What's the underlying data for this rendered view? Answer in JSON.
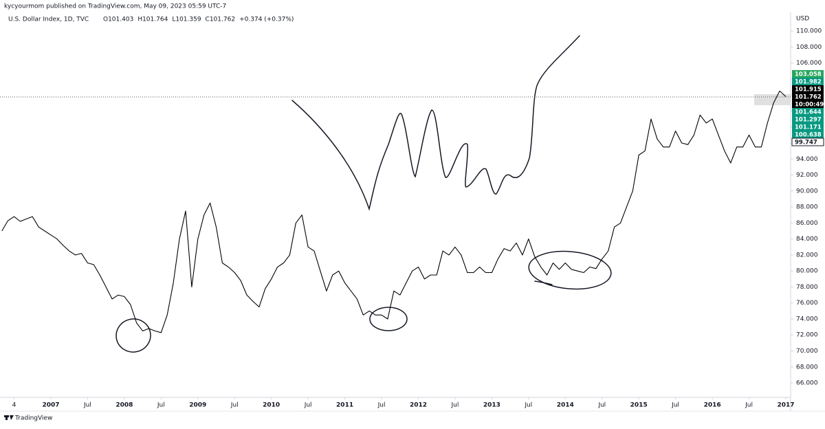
{
  "chart_data": {
    "type": "line",
    "header": "kycyourmom published on TradingView.com, May 09, 2023 05:59 UTC-7",
    "title": "U.S. Dollar Index, 1D, TVC",
    "ohlc": [
      "O101.403",
      "H101.764",
      "L101.359",
      "C101.762",
      "+0.374 (+0.37%)"
    ],
    "currency": "USD",
    "footer": "TradingView",
    "color": "#000000",
    "x": [
      "2006-05",
      "2006-06",
      "2006-07",
      "2006-08",
      "2006-09",
      "2006-10",
      "2006-11",
      "2006-12",
      "2007-01",
      "2007-02",
      "2007-03",
      "2007-04",
      "2007-05",
      "2007-06",
      "2007-07",
      "2007-08",
      "2007-09",
      "2007-10",
      "2007-11",
      "2007-12",
      "2008-01",
      "2008-02",
      "2008-03",
      "2008-04",
      "2008-05",
      "2008-06",
      "2008-07",
      "2008-08",
      "2008-09",
      "2008-10",
      "2008-11",
      "2008-12",
      "2009-01",
      "2009-02",
      "2009-03",
      "2009-04",
      "2009-05",
      "2009-06",
      "2009-07",
      "2009-08",
      "2009-09",
      "2009-10",
      "2009-11",
      "2009-12",
      "2010-01",
      "2010-02",
      "2010-03",
      "2010-04",
      "2010-05",
      "2010-06",
      "2010-07",
      "2010-08",
      "2010-09",
      "2010-10",
      "2010-11",
      "2010-12",
      "2011-01",
      "2011-02",
      "2011-03",
      "2011-04",
      "2011-05",
      "2011-06",
      "2011-07",
      "2011-08",
      "2011-09",
      "2011-10",
      "2011-11",
      "2011-12",
      "2012-01",
      "2012-02",
      "2012-03",
      "2012-04",
      "2012-05",
      "2012-06",
      "2012-07",
      "2012-08",
      "2012-09",
      "2012-10",
      "2012-11",
      "2012-12",
      "2013-01",
      "2013-02",
      "2013-03",
      "2013-04",
      "2013-05",
      "2013-06",
      "2013-07",
      "2013-08",
      "2013-09",
      "2013-10",
      "2013-11",
      "2013-12",
      "2014-01",
      "2014-02",
      "2014-03",
      "2014-04",
      "2014-05",
      "2014-06",
      "2014-07",
      "2014-08",
      "2014-09",
      "2014-10",
      "2014-11",
      "2014-12",
      "2015-01",
      "2015-02",
      "2015-03",
      "2015-04",
      "2015-05",
      "2015-06",
      "2015-07",
      "2015-08",
      "2015-09",
      "2015-10",
      "2015-11",
      "2015-12",
      "2016-01",
      "2016-02",
      "2016-03",
      "2016-04",
      "2016-05",
      "2016-06",
      "2016-07",
      "2016-08",
      "2016-09",
      "2016-10",
      "2016-11",
      "2016-12",
      "2017-01"
    ],
    "values": [
      85.0,
      86.3,
      86.8,
      86.2,
      86.5,
      86.8,
      85.5,
      85.0,
      84.5,
      84.0,
      83.2,
      82.5,
      82.0,
      82.2,
      81.0,
      80.8,
      79.5,
      78.0,
      76.5,
      77.0,
      76.8,
      75.8,
      73.5,
      72.5,
      72.8,
      72.5,
      72.3,
      74.5,
      78.5,
      84.0,
      87.5,
      78.0,
      84.0,
      87.0,
      88.5,
      85.5,
      81.0,
      80.5,
      79.8,
      78.8,
      77.0,
      76.2,
      75.5,
      77.8,
      79.0,
      80.5,
      81.0,
      82.0,
      86.0,
      87.0,
      83.0,
      82.5,
      80.0,
      77.5,
      79.5,
      80.0,
      78.5,
      77.5,
      76.5,
      74.5,
      75.0,
      74.5,
      74.5,
      74.0,
      77.5,
      77.0,
      78.5,
      80.0,
      80.5,
      79.0,
      79.5,
      79.5,
      82.5,
      82.0,
      83.0,
      82.0,
      79.8,
      79.8,
      80.5,
      79.8,
      79.8,
      81.5,
      82.8,
      82.5,
      83.5,
      82.0,
      84.0,
      81.8,
      80.5,
      79.5,
      81.0,
      80.2,
      81.0,
      80.2,
      80.0,
      79.8,
      80.5,
      80.3,
      81.5,
      82.5,
      85.5,
      86.0,
      88.0,
      90.0,
      94.5,
      95.0,
      99.0,
      96.5,
      95.5,
      95.5,
      97.5,
      96.0,
      95.8,
      97.0,
      99.5,
      98.5,
      99.0,
      97.0,
      95.0,
      93.5,
      95.5,
      95.5,
      97.0,
      95.5,
      95.5,
      98.5,
      101.0,
      102.5,
      101.8
    ],
    "xlim": [
      "2006-05",
      "2017-01"
    ],
    "xticks": [
      {
        "value": "2006-07",
        "label": "4"
      },
      {
        "value": "2007-01",
        "label": "2007"
      },
      {
        "value": "2007-07",
        "label": "Jul"
      },
      {
        "value": "2008-01",
        "label": "2008"
      },
      {
        "value": "2008-07",
        "label": "Jul"
      },
      {
        "value": "2009-01",
        "label": "2009"
      },
      {
        "value": "2009-07",
        "label": "Jul"
      },
      {
        "value": "2010-01",
        "label": "2010"
      },
      {
        "value": "2010-07",
        "label": "Jul"
      },
      {
        "value": "2011-01",
        "label": "2011"
      },
      {
        "value": "2011-07",
        "label": "Jul"
      },
      {
        "value": "2012-01",
        "label": "2012"
      },
      {
        "value": "2012-07",
        "label": "Jul"
      },
      {
        "value": "2013-01",
        "label": "2013"
      },
      {
        "value": "2013-07",
        "label": "Jul"
      },
      {
        "value": "2014-01",
        "label": "2014"
      },
      {
        "value": "2014-07",
        "label": "Jul"
      },
      {
        "value": "2015-01",
        "label": "2015"
      },
      {
        "value": "2015-07",
        "label": "Jul"
      },
      {
        "value": "2016-01",
        "label": "2016"
      },
      {
        "value": "2016-07",
        "label": "Jul"
      },
      {
        "value": "2017-01",
        "label": "2017"
      }
    ],
    "ylim": [
      64.2,
      111.3
    ],
    "yticks": [
      {
        "value": 66,
        "label": "66.000"
      },
      {
        "value": 68,
        "label": "68.000"
      },
      {
        "value": 70,
        "label": "70.000"
      },
      {
        "value": 72,
        "label": "72.000"
      },
      {
        "value": 74,
        "label": "74.000"
      },
      {
        "value": 76,
        "label": "76.000"
      },
      {
        "value": 78,
        "label": "78.000"
      },
      {
        "value": 80,
        "label": "80.000"
      },
      {
        "value": 82,
        "label": "82.000"
      },
      {
        "value": 84,
        "label": "84.000"
      },
      {
        "value": 86,
        "label": "86.000"
      },
      {
        "value": 88,
        "label": "88.000"
      },
      {
        "value": 90,
        "label": "90.000"
      },
      {
        "value": 92,
        "label": "92.000"
      },
      {
        "value": 94,
        "label": "94.000"
      },
      {
        "value": 96,
        "label": "96.000"
      },
      {
        "value": 98,
        "label": "98.000"
      },
      {
        "value": 100,
        "label": "100.000"
      },
      {
        "value": 102,
        "label": "102.000"
      },
      {
        "value": 104,
        "label": "104.000"
      },
      {
        "value": 106,
        "label": "106.000"
      },
      {
        "value": 108,
        "label": "108.000"
      },
      {
        "value": 110,
        "label": "110.000"
      }
    ],
    "last_price": 101.762,
    "countdown": "10:00:49",
    "price_tags": [
      {
        "value": 103.058,
        "color": "#26a65b"
      },
      {
        "value": 101.982,
        "color": "#089981"
      },
      {
        "value": 101.915,
        "color": "#000000"
      },
      {
        "value": 101.762,
        "color": "#000000"
      },
      {
        "value": 101.644,
        "color": "#089981"
      },
      {
        "value": 101.297,
        "color": "#089981"
      },
      {
        "value": 101.171,
        "color": "#089981"
      },
      {
        "value": 100.638,
        "color": "#089981"
      },
      {
        "value": 99.747,
        "color": "#ffffff"
      }
    ]
  }
}
